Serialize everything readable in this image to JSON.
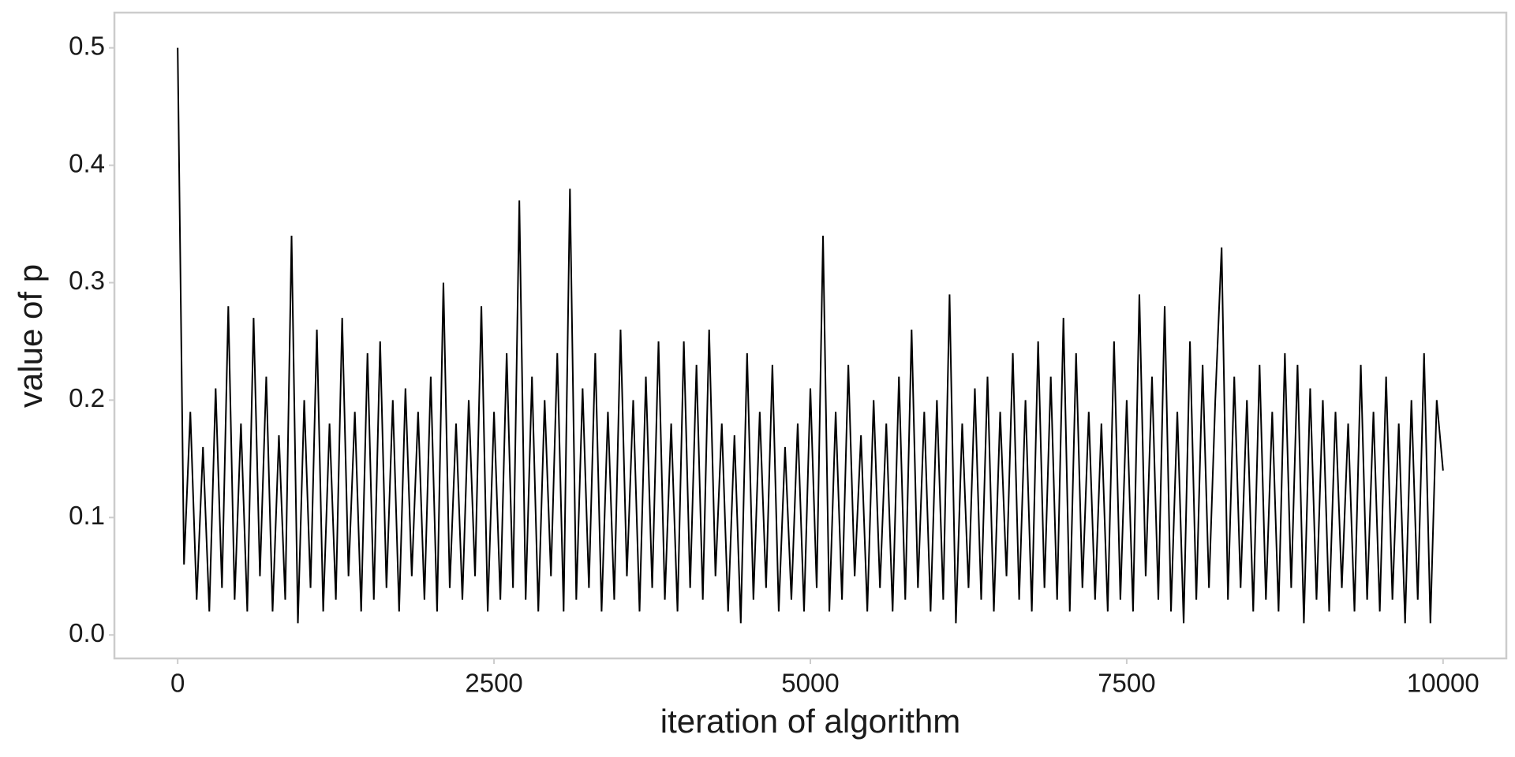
{
  "chart_data": {
    "type": "line",
    "x_label": "iteration of algorithm",
    "y_label": "value of p",
    "xlim": [
      -500,
      10500
    ],
    "ylim": [
      -0.02,
      0.53
    ],
    "xticks": [
      0,
      2500,
      5000,
      7500,
      10000
    ],
    "yticks": [
      {
        "value": 0,
        "label": "0.0"
      },
      0.1,
      0.2,
      0.3,
      0.4,
      0.5
    ],
    "grid": false,
    "color": "#000000",
    "x": [
      0,
      50,
      100,
      150,
      200,
      250,
      300,
      350,
      400,
      450,
      500,
      550,
      600,
      650,
      700,
      750,
      800,
      850,
      900,
      950,
      1000,
      1050,
      1100,
      1150,
      1200,
      1250,
      1300,
      1350,
      1400,
      1450,
      1500,
      1550,
      1600,
      1650,
      1700,
      1750,
      1800,
      1850,
      1900,
      1950,
      2000,
      2050,
      2100,
      2150,
      2200,
      2250,
      2300,
      2350,
      2400,
      2450,
      2500,
      2550,
      2600,
      2650,
      2700,
      2750,
      2800,
      2850,
      2900,
      2950,
      3000,
      3050,
      3100,
      3150,
      3200,
      3250,
      3300,
      3350,
      3400,
      3450,
      3500,
      3550,
      3600,
      3650,
      3700,
      3750,
      3800,
      3850,
      3900,
      3950,
      4000,
      4050,
      4100,
      4150,
      4200,
      4250,
      4300,
      4350,
      4400,
      4450,
      4500,
      4550,
      4600,
      4650,
      4700,
      4750,
      4800,
      4850,
      4900,
      4950,
      5000,
      5050,
      5100,
      5150,
      5200,
      5250,
      5300,
      5350,
      5400,
      5450,
      5500,
      5550,
      5600,
      5650,
      5700,
      5750,
      5800,
      5850,
      5900,
      5950,
      6000,
      6050,
      6100,
      6150,
      6200,
      6250,
      6300,
      6350,
      6400,
      6450,
      6500,
      6550,
      6600,
      6650,
      6700,
      6750,
      6800,
      6850,
      6900,
      6950,
      7000,
      7050,
      7100,
      7150,
      7200,
      7250,
      7300,
      7350,
      7400,
      7450,
      7500,
      7550,
      7600,
      7650,
      7700,
      7750,
      7800,
      7850,
      7900,
      7950,
      8000,
      8050,
      8100,
      8150,
      8200,
      8250,
      8300,
      8350,
      8400,
      8450,
      8500,
      8550,
      8600,
      8650,
      8700,
      8750,
      8800,
      8850,
      8900,
      8950,
      9000,
      9050,
      9100,
      9150,
      9200,
      9250,
      9300,
      9350,
      9400,
      9450,
      9500,
      9550,
      9600,
      9650,
      9700,
      9750,
      9800,
      9850,
      9900,
      9950,
      10000
    ],
    "values": [
      0.5,
      0.06,
      0.19,
      0.03,
      0.16,
      0.02,
      0.21,
      0.04,
      0.28,
      0.03,
      0.18,
      0.02,
      0.27,
      0.05,
      0.22,
      0.02,
      0.17,
      0.03,
      0.34,
      0.01,
      0.2,
      0.04,
      0.26,
      0.02,
      0.18,
      0.03,
      0.27,
      0.05,
      0.19,
      0.02,
      0.24,
      0.03,
      0.25,
      0.04,
      0.2,
      0.02,
      0.21,
      0.05,
      0.19,
      0.03,
      0.22,
      0.02,
      0.3,
      0.04,
      0.18,
      0.03,
      0.2,
      0.05,
      0.28,
      0.02,
      0.19,
      0.03,
      0.24,
      0.04,
      0.37,
      0.03,
      0.22,
      0.02,
      0.2,
      0.05,
      0.24,
      0.02,
      0.38,
      0.03,
      0.21,
      0.04,
      0.24,
      0.02,
      0.19,
      0.03,
      0.26,
      0.05,
      0.2,
      0.02,
      0.22,
      0.04,
      0.25,
      0.03,
      0.18,
      0.02,
      0.25,
      0.04,
      0.23,
      0.03,
      0.26,
      0.05,
      0.18,
      0.02,
      0.17,
      0.01,
      0.24,
      0.03,
      0.19,
      0.04,
      0.23,
      0.02,
      0.16,
      0.03,
      0.18,
      0.02,
      0.21,
      0.04,
      0.34,
      0.02,
      0.19,
      0.03,
      0.23,
      0.05,
      0.17,
      0.02,
      0.2,
      0.04,
      0.18,
      0.02,
      0.22,
      0.03,
      0.26,
      0.04,
      0.19,
      0.02,
      0.2,
      0.03,
      0.29,
      0.01,
      0.18,
      0.04,
      0.21,
      0.03,
      0.22,
      0.02,
      0.19,
      0.05,
      0.24,
      0.03,
      0.2,
      0.02,
      0.25,
      0.04,
      0.22,
      0.03,
      0.27,
      0.02,
      0.24,
      0.04,
      0.19,
      0.03,
      0.18,
      0.02,
      0.25,
      0.03,
      0.2,
      0.02,
      0.29,
      0.05,
      0.22,
      0.03,
      0.28,
      0.02,
      0.19,
      0.01,
      0.25,
      0.03,
      0.23,
      0.04,
      0.2,
      0.33,
      0.03,
      0.22,
      0.04,
      0.2,
      0.02,
      0.23,
      0.03,
      0.19,
      0.02,
      0.24,
      0.04,
      0.23,
      0.01,
      0.21,
      0.03,
      0.2,
      0.02,
      0.19,
      0.04,
      0.18,
      0.02,
      0.23,
      0.03,
      0.19,
      0.02,
      0.22,
      0.03,
      0.18,
      0.01,
      0.2,
      0.03,
      0.24,
      0.01,
      0.2,
      0.14
    ]
  }
}
